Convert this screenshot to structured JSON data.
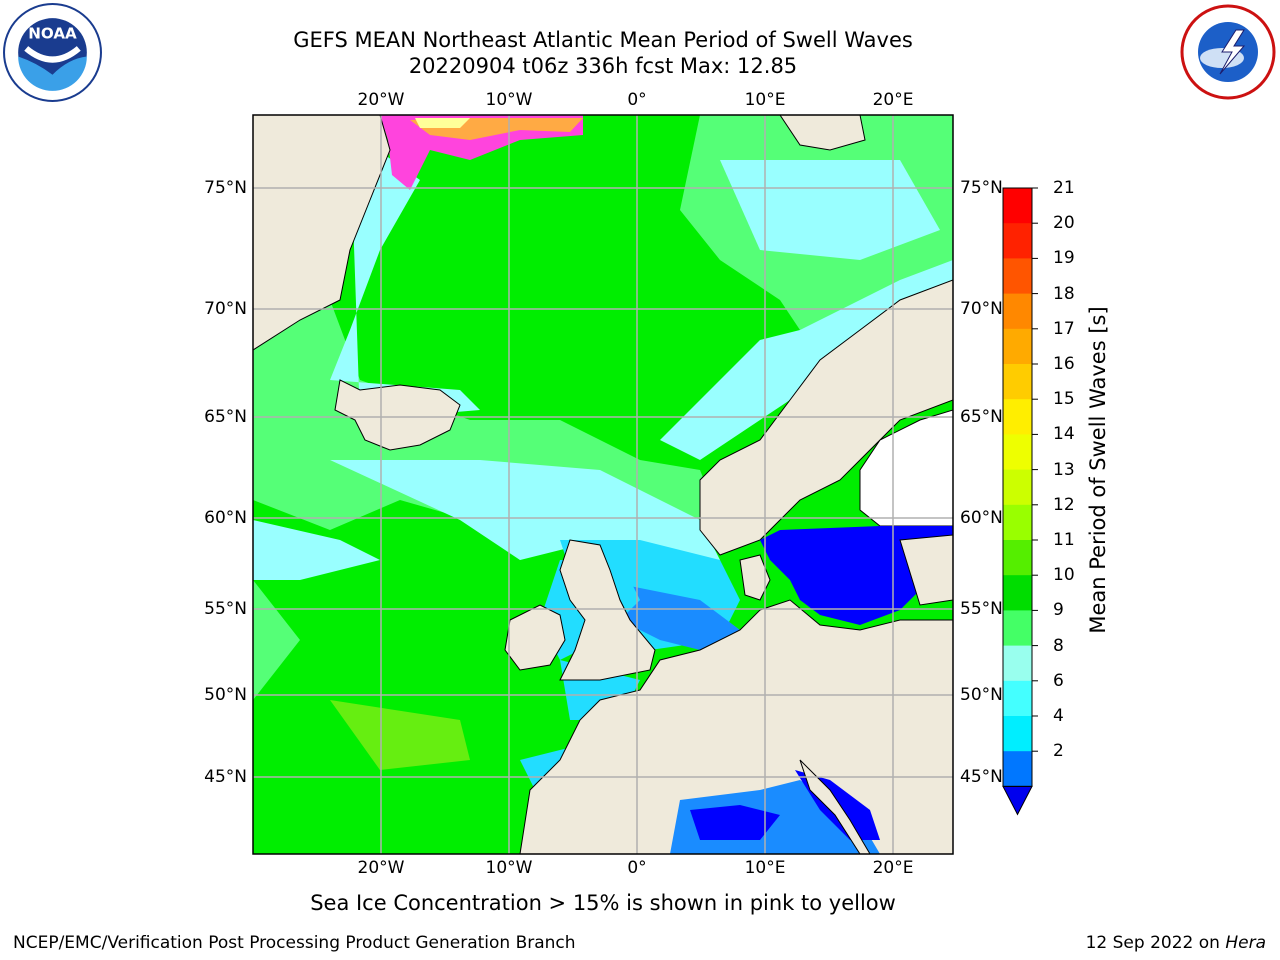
{
  "header": {
    "title_line1": "GEFS MEAN Northeast Atlantic Mean Period of Swell Waves",
    "title_line2": "20220904 t06z 336h fcst   Max: 12.85"
  },
  "logos": {
    "left": "NOAA",
    "right": "NATIONAL WEATHER SERVICE"
  },
  "map": {
    "lon_ticks": [
      "20°W",
      "10°W",
      "0°",
      "10°E",
      "20°E"
    ],
    "lat_ticks": [
      "75°N",
      "70°N",
      "65°N",
      "60°N",
      "55°N",
      "50°N",
      "45°N"
    ],
    "field_colors": {
      "land": "#efeadb",
      "ocean_main": "#00ee00",
      "ocean_mid": "#55ff77",
      "ocean_low": "#99ffff",
      "shelf": "#22ddff",
      "enclosed_sea": "#0000ff",
      "ice_pink": "#ff44dd",
      "ice_orange": "#ffaa44"
    }
  },
  "colorbar": {
    "label": "Mean Period of Swell Waves [s]",
    "ticks": [
      "21",
      "20",
      "19",
      "18",
      "17",
      "16",
      "15",
      "14",
      "13",
      "12",
      "11",
      "10",
      "9",
      "8",
      "6",
      "4",
      "2"
    ],
    "colors": [
      "#ff0000",
      "#ff2200",
      "#ff5500",
      "#ff8800",
      "#ffaa00",
      "#ffcc00",
      "#ffee00",
      "#eeff00",
      "#ccff00",
      "#99ff00",
      "#55ee00",
      "#00dd00",
      "#44ff66",
      "#99ffee",
      "#44ffff",
      "#00eeff",
      "#0077ff"
    ],
    "extend_color": "#0000ee"
  },
  "note": "Sea Ice Concentration > 15% is shown in pink to yellow",
  "footer": {
    "left": "NCEP/EMC/Verification Post Processing Product Generation Branch",
    "right_date": "12 Sep 2022 on ",
    "right_machine": "Hera"
  }
}
